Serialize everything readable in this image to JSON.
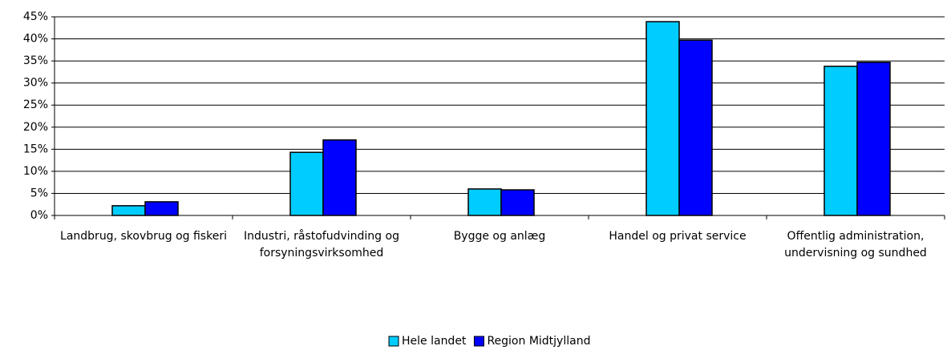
{
  "chart_data": {
    "type": "bar",
    "categories": [
      "Landbrug, skovbrug og fiskeri",
      "Industri, råstofudvinding og forsyningsvirksomhed",
      "Bygge og anlæg",
      "Handel og privat service",
      "Offentlig administration, undervisning og sundhed"
    ],
    "series": [
      {
        "name": "Hele landet",
        "color": "#00ccff",
        "values": [
          2.2,
          14.3,
          6.0,
          43.9,
          33.8
        ]
      },
      {
        "name": "Region Midtjylland",
        "color": "#0000ff",
        "values": [
          3.1,
          17.1,
          5.8,
          39.7,
          34.7
        ]
      }
    ],
    "ylim": [
      0,
      45
    ],
    "yticks": [
      {
        "value": 0,
        "label": "0%"
      },
      {
        "value": 5,
        "label": "5%"
      },
      {
        "value": 10,
        "label": "10%"
      },
      {
        "value": 15,
        "label": "15%"
      },
      {
        "value": 20,
        "label": "20%"
      },
      {
        "value": 25,
        "label": "25%"
      },
      {
        "value": 30,
        "label": "30%"
      },
      {
        "value": 35,
        "label": "35%"
      },
      {
        "value": 40,
        "label": "40%"
      },
      {
        "value": 45,
        "label": "45%"
      }
    ],
    "grid": true,
    "legend": "bottom"
  }
}
